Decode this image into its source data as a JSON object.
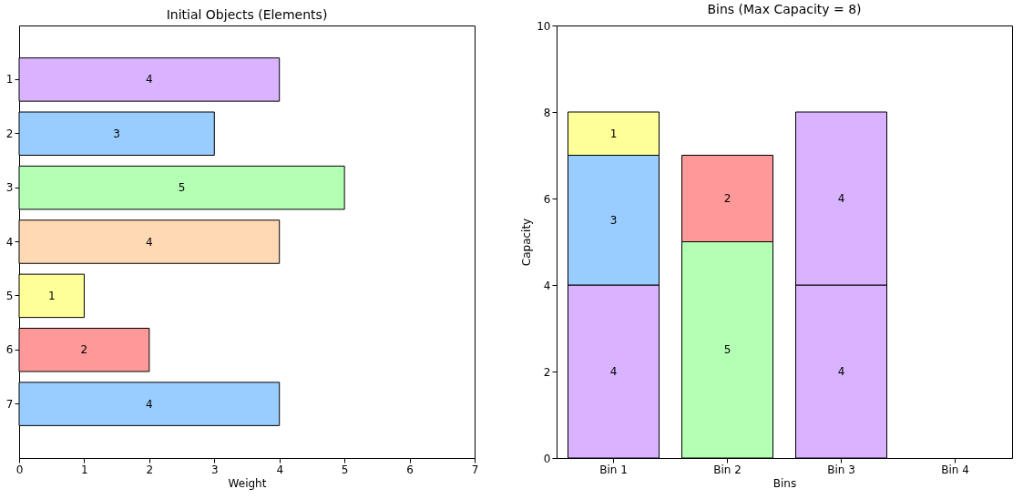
{
  "chart_data": [
    {
      "type": "bar",
      "orientation": "horizontal",
      "title": "Initial Objects (Elements)",
      "xlabel": "Weight",
      "categories": [
        "1",
        "2",
        "3",
        "4",
        "5",
        "6",
        "7"
      ],
      "values": [
        4,
        3,
        5,
        4,
        1,
        2,
        4
      ],
      "colors": [
        "#d9b3ff",
        "#99ccff",
        "#b3ffb3",
        "#ffd9b3",
        "#ffff99",
        "#ff9999",
        "#99ccff"
      ],
      "xlim": [
        0,
        7
      ],
      "xticks": [
        0,
        1,
        2,
        3,
        4,
        5,
        6,
        7
      ],
      "data_labels": true,
      "grid": false
    },
    {
      "type": "bar",
      "stacked": true,
      "title": "Bins (Max Capacity = 8)",
      "xlabel": "Bins",
      "ylabel": "Capacity",
      "categories": [
        "Bin 1",
        "Bin 2",
        "Bin 3",
        "Bin 4"
      ],
      "series": [
        {
          "values": [
            4,
            5,
            4,
            null
          ],
          "colors": [
            "#d9b3ff",
            "#b3ffb3",
            "#d9b3ff",
            null
          ]
        },
        {
          "values": [
            3,
            2,
            4,
            null
          ],
          "colors": [
            "#99ccff",
            "#ff9999",
            "#d9b3ff",
            null
          ]
        },
        {
          "values": [
            1,
            null,
            null,
            null
          ],
          "colors": [
            "#ffff99",
            null,
            null,
            null
          ]
        }
      ],
      "ylim": [
        0,
        10
      ],
      "yticks": [
        0,
        2,
        4,
        6,
        8,
        10
      ],
      "data_labels": true,
      "grid": false
    }
  ]
}
